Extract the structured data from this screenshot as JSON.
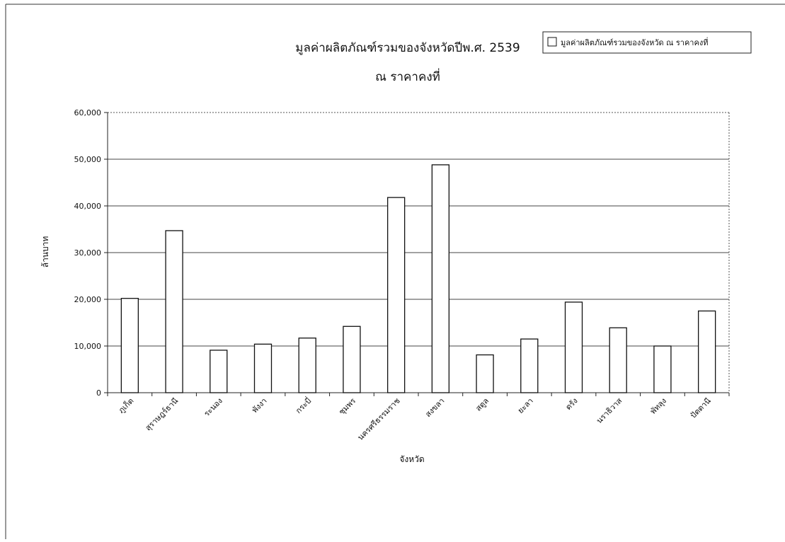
{
  "chart_data": {
    "type": "bar",
    "title": "มูลค่าผลิตภัณฑ์รวมของจังหวัดปีพ.ศ. 2539",
    "subtitle": "ณ ราคาคงที่",
    "xlabel": "จังหวัด",
    "ylabel": "ล้านบาท",
    "ylim": [
      0,
      60000
    ],
    "yticks": [
      0,
      10000,
      20000,
      30000,
      40000,
      50000,
      60000
    ],
    "ytick_labels": [
      "0",
      "10,000",
      "20,000",
      "30,000",
      "40,000",
      "50,000",
      "60,000"
    ],
    "grid": true,
    "legend_position": "top-right",
    "categories": [
      "ภูเก็ต",
      "สุราษฎร์ธานี",
      "ระนอง",
      "พังงา",
      "กระบี่",
      "ชุมพร",
      "นครศรีธรรมราช",
      "สงขลา",
      "สตูล",
      "ยะลา",
      "ตรัง",
      "นราธิวาส",
      "พัทลุง",
      "ปัตตานี"
    ],
    "series": [
      {
        "name": "มูลค่าผลิตภัณฑ์รวมของจังหวัด ณ ราคาคงที่",
        "values": [
          20200,
          34700,
          9100,
          10400,
          11700,
          14200,
          41800,
          48800,
          8100,
          11500,
          19400,
          13900,
          10000,
          17500
        ]
      }
    ],
    "colors": {
      "bar_fill": "#ffffff",
      "bar_stroke": "#111111",
      "gridline": "#444444",
      "axis": "#222222"
    }
  }
}
